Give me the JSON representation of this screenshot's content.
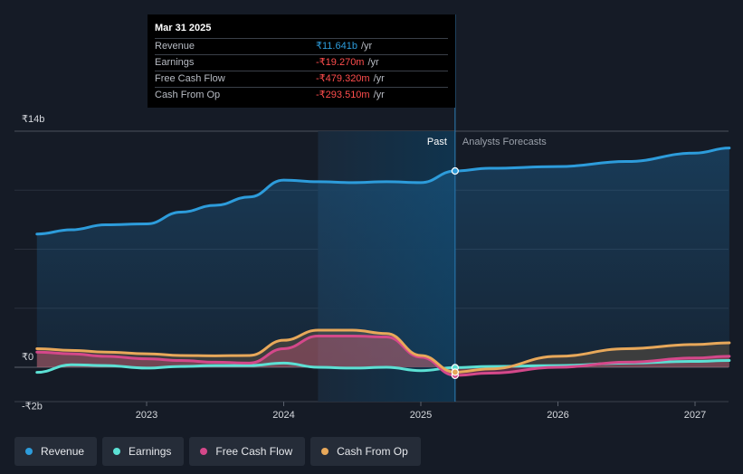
{
  "tooltip": {
    "date": "Mar 31 2025",
    "rows": [
      {
        "label": "Revenue",
        "value": "₹11.641b",
        "unit": "/yr",
        "color": "#2d9cdb"
      },
      {
        "label": "Earnings",
        "value": "-₹19.270m",
        "unit": "/yr",
        "color": "#ff4d4d"
      },
      {
        "label": "Free Cash Flow",
        "value": "-₹479.320m",
        "unit": "/yr",
        "color": "#ff4d4d"
      },
      {
        "label": "Cash From Op",
        "value": "-₹293.510m",
        "unit": "/yr",
        "color": "#ff4d4d"
      }
    ]
  },
  "legend": [
    {
      "label": "Revenue",
      "color": "#2d9cdb"
    },
    {
      "label": "Earnings",
      "color": "#5ce0d4"
    },
    {
      "label": "Free Cash Flow",
      "color": "#d4488a"
    },
    {
      "label": "Cash From Op",
      "color": "#e8a85a"
    }
  ],
  "chart_data": {
    "type": "line",
    "title": "",
    "xlabel": "",
    "ylabel": "",
    "unit": "INR",
    "ylim": [
      -2,
      14
    ],
    "xlim": [
      2022.2,
      2027.25
    ],
    "y_tick_labels": [
      {
        "value": 14,
        "label": "₹14b"
      },
      {
        "value": 0,
        "label": "₹0"
      },
      {
        "value": -2,
        "label": "-₹2b"
      }
    ],
    "x_tick_labels": [
      {
        "value": 2023,
        "label": "2023"
      },
      {
        "value": 2024,
        "label": "2024"
      },
      {
        "value": 2025,
        "label": "2025"
      },
      {
        "value": 2026,
        "label": "2026"
      },
      {
        "value": 2027,
        "label": "2027"
      }
    ],
    "past_label": "Past",
    "forecast_label": "Analysts Forecasts",
    "highlight_start": 2024.25,
    "divider_x": 2025.25,
    "series": [
      {
        "name": "Revenue",
        "color": "#2d9cdb",
        "area": true,
        "points": [
          [
            2022.2,
            7.9
          ],
          [
            2022.45,
            8.15
          ],
          [
            2022.7,
            8.45
          ],
          [
            2023.0,
            8.5
          ],
          [
            2023.25,
            9.2
          ],
          [
            2023.5,
            9.6
          ],
          [
            2023.75,
            10.1
          ],
          [
            2024.0,
            11.1
          ],
          [
            2024.25,
            11.0
          ],
          [
            2024.5,
            10.95
          ],
          [
            2024.75,
            11.0
          ],
          [
            2025.0,
            10.95
          ],
          [
            2025.25,
            11.64
          ],
          [
            2025.5,
            11.8
          ],
          [
            2026.0,
            11.9
          ],
          [
            2026.5,
            12.2
          ],
          [
            2027.0,
            12.7
          ],
          [
            2027.25,
            13.0
          ]
        ]
      },
      {
        "name": "Earnings",
        "color": "#5ce0d4",
        "area": false,
        "points": [
          [
            2022.2,
            -0.3
          ],
          [
            2022.45,
            0.15
          ],
          [
            2022.7,
            0.1
          ],
          [
            2023.0,
            -0.05
          ],
          [
            2023.25,
            0.05
          ],
          [
            2023.5,
            0.1
          ],
          [
            2023.75,
            0.1
          ],
          [
            2024.0,
            0.25
          ],
          [
            2024.25,
            0.0
          ],
          [
            2024.5,
            -0.05
          ],
          [
            2024.75,
            0.0
          ],
          [
            2025.0,
            -0.2
          ],
          [
            2025.25,
            -0.02
          ],
          [
            2025.5,
            0.05
          ],
          [
            2026.0,
            0.1
          ],
          [
            2026.5,
            0.25
          ],
          [
            2027.0,
            0.35
          ],
          [
            2027.25,
            0.4
          ]
        ]
      },
      {
        "name": "Free Cash Flow",
        "color": "#d4488a",
        "area": true,
        "points": [
          [
            2022.2,
            0.9
          ],
          [
            2022.45,
            0.8
          ],
          [
            2022.7,
            0.65
          ],
          [
            2023.0,
            0.5
          ],
          [
            2023.25,
            0.4
          ],
          [
            2023.5,
            0.3
          ],
          [
            2023.75,
            0.25
          ],
          [
            2024.0,
            1.1
          ],
          [
            2024.25,
            1.85
          ],
          [
            2024.5,
            1.85
          ],
          [
            2024.75,
            1.8
          ],
          [
            2025.0,
            0.6
          ],
          [
            2025.25,
            -0.48
          ],
          [
            2025.5,
            -0.35
          ],
          [
            2026.0,
            0.0
          ],
          [
            2026.5,
            0.3
          ],
          [
            2027.0,
            0.55
          ],
          [
            2027.25,
            0.65
          ]
        ]
      },
      {
        "name": "Cash From Op",
        "color": "#e8a85a",
        "area": true,
        "points": [
          [
            2022.2,
            1.1
          ],
          [
            2022.45,
            1.0
          ],
          [
            2022.7,
            0.9
          ],
          [
            2023.0,
            0.8
          ],
          [
            2023.25,
            0.7
          ],
          [
            2023.5,
            0.68
          ],
          [
            2023.75,
            0.7
          ],
          [
            2024.0,
            1.6
          ],
          [
            2024.25,
            2.2
          ],
          [
            2024.5,
            2.2
          ],
          [
            2024.75,
            2.0
          ],
          [
            2025.0,
            0.7
          ],
          [
            2025.25,
            -0.29
          ],
          [
            2025.5,
            -0.1
          ],
          [
            2026.0,
            0.65
          ],
          [
            2026.5,
            1.1
          ],
          [
            2027.0,
            1.35
          ],
          [
            2027.25,
            1.45
          ]
        ]
      }
    ]
  }
}
